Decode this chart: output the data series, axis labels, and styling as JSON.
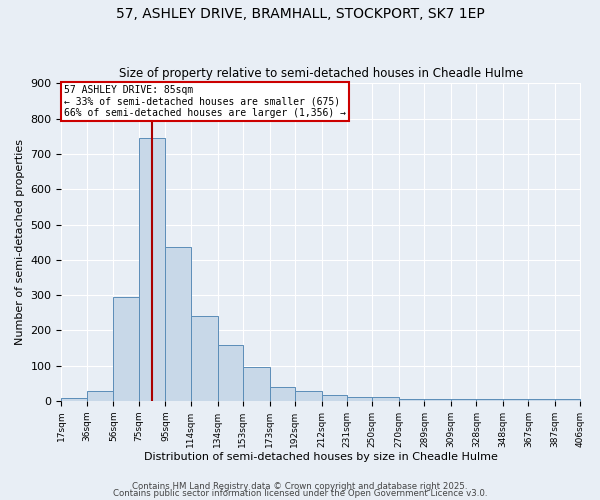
{
  "title": "57, ASHLEY DRIVE, BRAMHALL, STOCKPORT, SK7 1EP",
  "subtitle": "Size of property relative to semi-detached houses in Cheadle Hulme",
  "xlabel": "Distribution of semi-detached houses by size in Cheadle Hulme",
  "ylabel": "Number of semi-detached properties",
  "bin_labels": [
    "17sqm",
    "36sqm",
    "56sqm",
    "75sqm",
    "95sqm",
    "114sqm",
    "134sqm",
    "153sqm",
    "173sqm",
    "192sqm",
    "212sqm",
    "231sqm",
    "250sqm",
    "270sqm",
    "289sqm",
    "309sqm",
    "328sqm",
    "348sqm",
    "367sqm",
    "387sqm",
    "406sqm"
  ],
  "bin_edges": [
    17,
    36,
    56,
    75,
    95,
    114,
    134,
    153,
    173,
    192,
    212,
    231,
    250,
    270,
    289,
    309,
    328,
    348,
    367,
    387,
    406
  ],
  "bar_heights": [
    8,
    28,
    295,
    745,
    437,
    240,
    157,
    97,
    38,
    28,
    17,
    10,
    10,
    5,
    5,
    5,
    5,
    5,
    5,
    5
  ],
  "bar_color": "#c8d8e8",
  "bar_edge_color": "#5b8db8",
  "property_line_x": 85,
  "property_line_color": "#aa0000",
  "annotation_line1": "57 ASHLEY DRIVE: 85sqm",
  "annotation_line2": "← 33% of semi-detached houses are smaller (675)",
  "annotation_line3": "66% of semi-detached houses are larger (1,356) →",
  "annotation_box_color": "#ffffff",
  "annotation_box_edge": "#cc0000",
  "ylim": [
    0,
    900
  ],
  "yticks": [
    0,
    100,
    200,
    300,
    400,
    500,
    600,
    700,
    800,
    900
  ],
  "bg_color": "#e8eef5",
  "grid_color": "#ffffff",
  "footer_text1": "Contains HM Land Registry data © Crown copyright and database right 2025.",
  "footer_text2": "Contains public sector information licensed under the Open Government Licence v3.0."
}
